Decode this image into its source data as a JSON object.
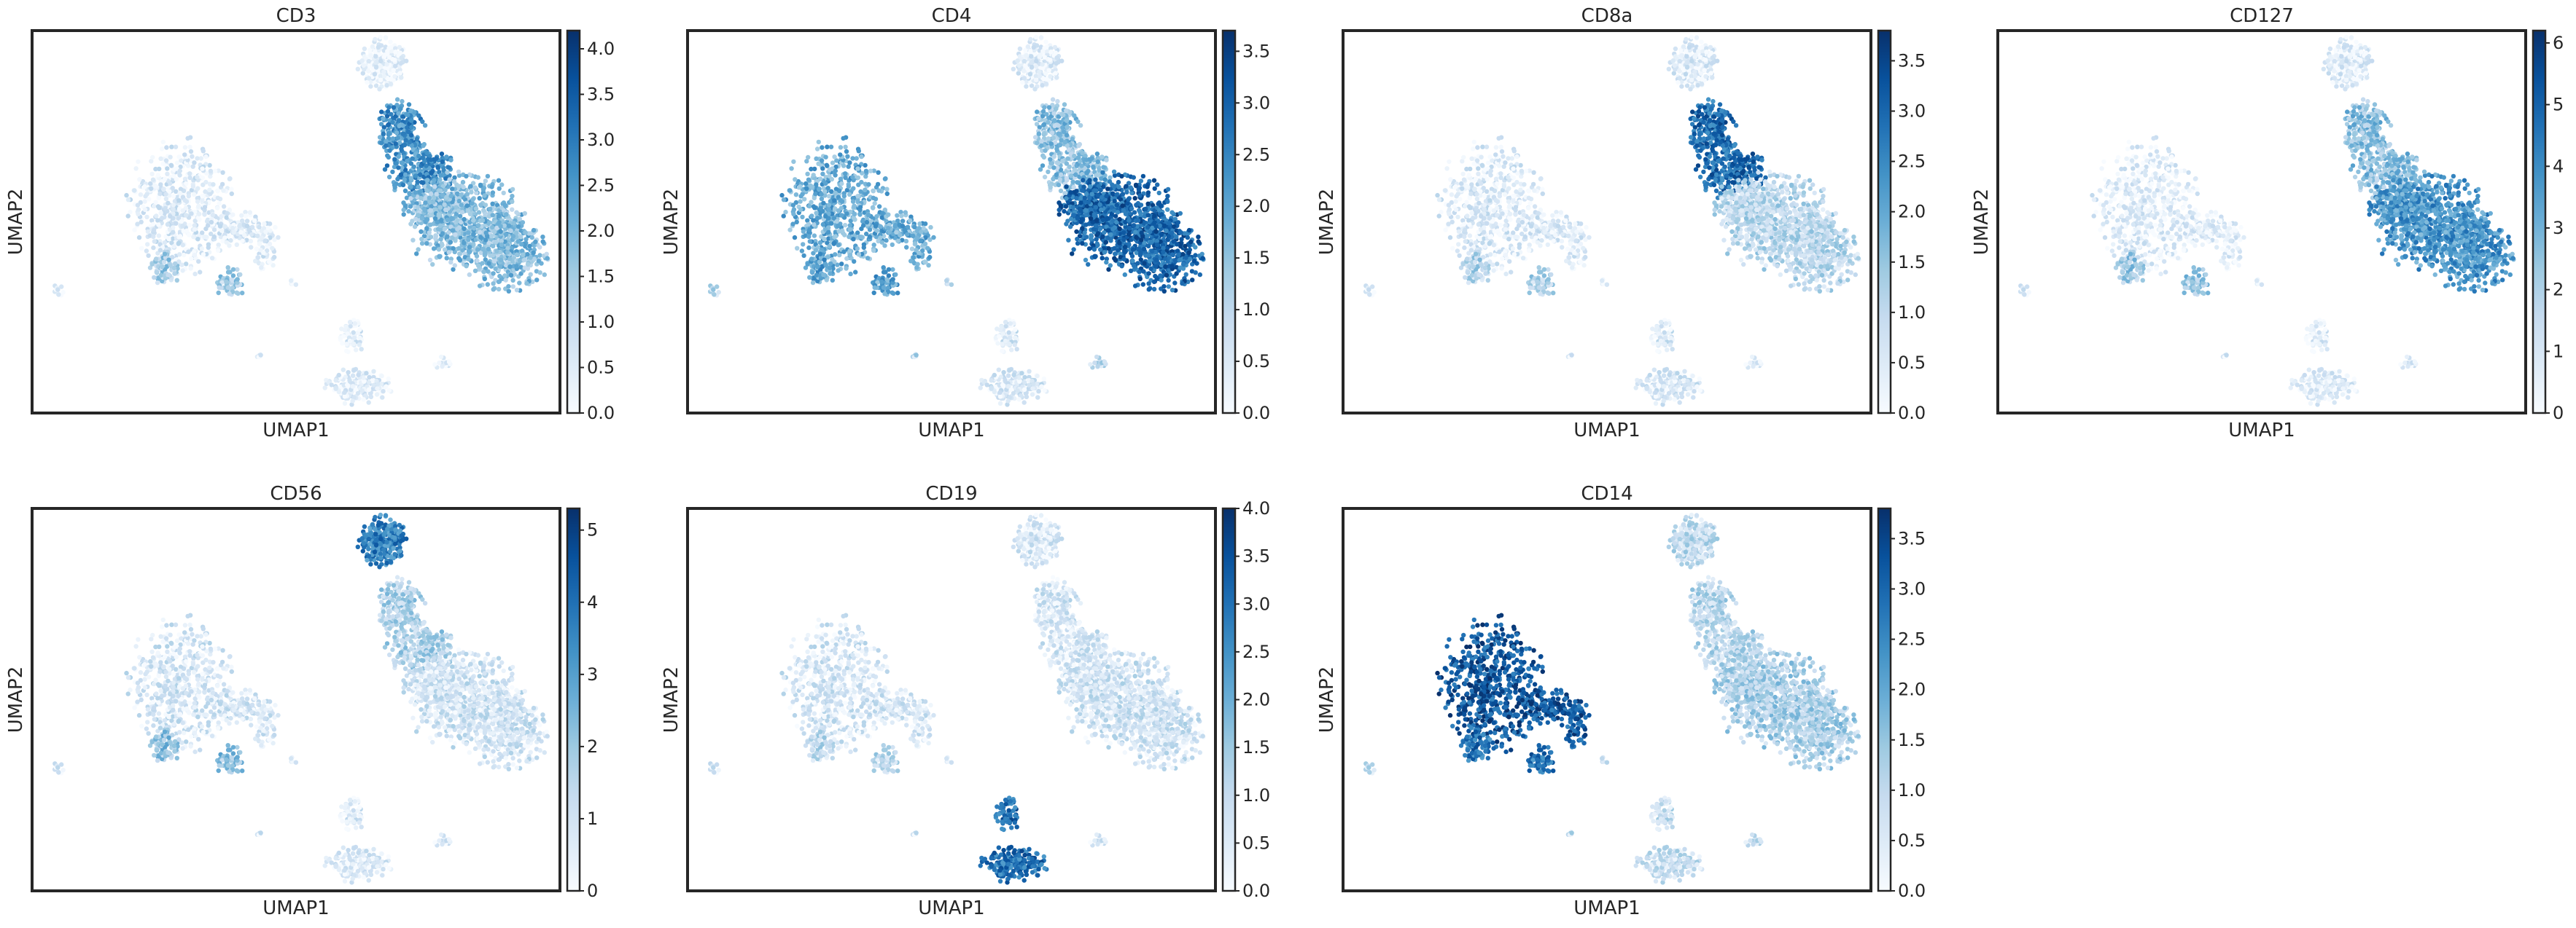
{
  "figure": {
    "colormap": "Blues",
    "colormap_stops": [
      "#f7fbff",
      "#deebf7",
      "#c6dbef",
      "#9ecae1",
      "#6baed6",
      "#4292c6",
      "#2171b5",
      "#08519c",
      "#08306b"
    ]
  },
  "chart_data": [
    {
      "type": "scatter",
      "title": "CD3",
      "xlabel": "UMAP1",
      "ylabel": "UMAP2",
      "colorbar": {
        "min": 0,
        "max": 4.2,
        "ticks": [
          "0.0",
          "0.5",
          "1.0",
          "1.5",
          "2.0",
          "2.5",
          "3.0",
          "3.5",
          "4.0"
        ],
        "tick_values": [
          0,
          0.5,
          1,
          1.5,
          2,
          2.5,
          3,
          3.5,
          4
        ]
      },
      "cluster_levels": {
        "c1": 0.25,
        "c2": 2.6,
        "c3": 1.8,
        "c4": 0.5,
        "c5": 0.4,
        "c6": 1.4,
        "c7": 0.2
      }
    },
    {
      "type": "scatter",
      "title": "CD4",
      "xlabel": "UMAP1",
      "ylabel": "UMAP2",
      "colorbar": {
        "min": 0,
        "max": 3.7,
        "ticks": [
          "0.0",
          "0.5",
          "1.0",
          "1.5",
          "2.0",
          "2.5",
          "3.0",
          "3.5"
        ],
        "tick_values": [
          0,
          0.5,
          1,
          1.5,
          2,
          2.5,
          3,
          3.5
        ]
      },
      "cluster_levels": {
        "c1": 0.35,
        "c2": 1.5,
        "c3": 2.9,
        "c4": 1.85,
        "c5": 0.5,
        "c6": 2.0,
        "c7": 0.9
      }
    },
    {
      "type": "scatter",
      "title": "CD8a",
      "xlabel": "UMAP1",
      "ylabel": "UMAP2",
      "colorbar": {
        "min": 0,
        "max": 3.8,
        "ticks": [
          "0.0",
          "0.5",
          "1.0",
          "1.5",
          "2.0",
          "2.5",
          "3.0",
          "3.5"
        ],
        "tick_values": [
          0,
          0.5,
          1,
          1.5,
          2,
          2.5,
          3,
          3.5
        ]
      },
      "cluster_levels": {
        "c1": 0.4,
        "c2": 2.9,
        "c3": 1.0,
        "c4": 0.45,
        "c5": 0.5,
        "c6": 1.1,
        "c7": 0.3
      }
    },
    {
      "type": "scatter",
      "title": "CD127",
      "xlabel": "UMAP1",
      "ylabel": "UMAP2",
      "colorbar": {
        "min": 0,
        "max": 6.2,
        "ticks": [
          "0",
          "1",
          "2",
          "3",
          "4",
          "5",
          "6"
        ],
        "tick_values": [
          0,
          1,
          2,
          3,
          4,
          5,
          6
        ]
      },
      "cluster_levels": {
        "c1": 0.6,
        "c2": 2.5,
        "c3": 3.7,
        "c4": 0.6,
        "c5": 0.6,
        "c6": 2.2,
        "c7": 0.6
      }
    },
    {
      "type": "scatter",
      "title": "CD56",
      "xlabel": "UMAP1",
      "ylabel": "UMAP2",
      "colorbar": {
        "min": 0,
        "max": 5.3,
        "ticks": [
          "0",
          "1",
          "2",
          "3",
          "4",
          "5"
        ],
        "tick_values": [
          0,
          1,
          2,
          3,
          4,
          5
        ]
      },
      "cluster_levels": {
        "c1": 3.6,
        "c2": 1.6,
        "c3": 0.9,
        "c4": 0.8,
        "c5": 0.6,
        "c6": 2.1,
        "c7": 0.6
      }
    },
    {
      "type": "scatter",
      "title": "CD19",
      "xlabel": "UMAP1",
      "ylabel": "UMAP2",
      "colorbar": {
        "min": 0,
        "max": 4.0,
        "ticks": [
          "0.0",
          "0.5",
          "1.0",
          "1.5",
          "2.0",
          "2.5",
          "3.0",
          "3.5",
          "4.0"
        ],
        "tick_values": [
          0,
          0.5,
          1,
          1.5,
          2,
          2.5,
          3,
          3.5,
          4
        ]
      },
      "cluster_levels": {
        "c1": 0.5,
        "c2": 0.6,
        "c3": 0.7,
        "c4": 0.6,
        "c5": 3.0,
        "c6": 1.0,
        "c7": 0.5
      }
    },
    {
      "type": "scatter",
      "title": "CD14",
      "xlabel": "UMAP1",
      "ylabel": "UMAP2",
      "colorbar": {
        "min": 0,
        "max": 3.8,
        "ticks": [
          "0.0",
          "0.5",
          "1.0",
          "1.5",
          "2.0",
          "2.5",
          "3.0",
          "3.5"
        ],
        "tick_values": [
          0,
          0.5,
          1,
          1.5,
          2,
          2.5,
          3,
          3.5
        ]
      },
      "cluster_levels": {
        "c1": 0.9,
        "c2": 1.0,
        "c3": 1.2,
        "c4": 3.2,
        "c5": 0.8,
        "c6": 2.8,
        "c7": 0.8
      }
    }
  ]
}
